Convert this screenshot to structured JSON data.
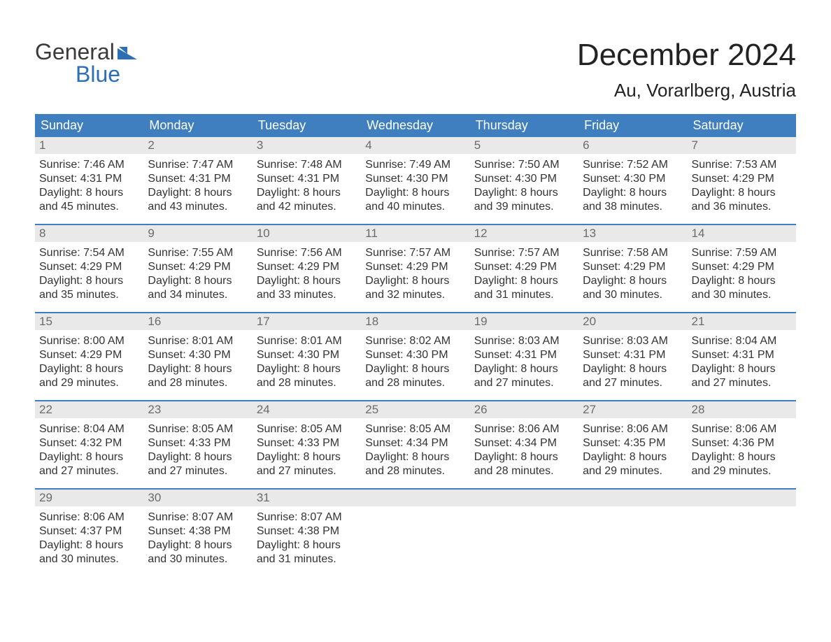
{
  "brand": {
    "line1": "General",
    "line2": "Blue",
    "flag_color": "#2d6fb4"
  },
  "header": {
    "title": "December 2024",
    "location": "Au, Vorarlberg, Austria"
  },
  "colors": {
    "header_bg": "#3f7fbf",
    "header_text": "#ffffff",
    "daynum_bg": "#e9e9e9",
    "daynum_text": "#6b6b6b",
    "body_text": "#333333",
    "week_divider": "#3f7fbf",
    "page_bg": "#ffffff"
  },
  "typography": {
    "title_fontsize": 44,
    "location_fontsize": 26,
    "weekday_fontsize": 18,
    "daynum_fontsize": 17,
    "body_fontsize": 16,
    "logo_fontsize": 32,
    "font_family": "Arial"
  },
  "layout": {
    "columns": 7,
    "rows": 5,
    "first_day_column_index": 0
  },
  "weekdays": [
    "Sunday",
    "Monday",
    "Tuesday",
    "Wednesday",
    "Thursday",
    "Friday",
    "Saturday"
  ],
  "labels": {
    "sunrise_prefix": "Sunrise: ",
    "sunset_prefix": "Sunset: ",
    "daylight_prefix": "Daylight: "
  },
  "days": [
    {
      "n": "1",
      "sunrise": "7:46 AM",
      "sunset": "4:31 PM",
      "daylight": "8 hours and 45 minutes."
    },
    {
      "n": "2",
      "sunrise": "7:47 AM",
      "sunset": "4:31 PM",
      "daylight": "8 hours and 43 minutes."
    },
    {
      "n": "3",
      "sunrise": "7:48 AM",
      "sunset": "4:31 PM",
      "daylight": "8 hours and 42 minutes."
    },
    {
      "n": "4",
      "sunrise": "7:49 AM",
      "sunset": "4:30 PM",
      "daylight": "8 hours and 40 minutes."
    },
    {
      "n": "5",
      "sunrise": "7:50 AM",
      "sunset": "4:30 PM",
      "daylight": "8 hours and 39 minutes."
    },
    {
      "n": "6",
      "sunrise": "7:52 AM",
      "sunset": "4:30 PM",
      "daylight": "8 hours and 38 minutes."
    },
    {
      "n": "7",
      "sunrise": "7:53 AM",
      "sunset": "4:29 PM",
      "daylight": "8 hours and 36 minutes."
    },
    {
      "n": "8",
      "sunrise": "7:54 AM",
      "sunset": "4:29 PM",
      "daylight": "8 hours and 35 minutes."
    },
    {
      "n": "9",
      "sunrise": "7:55 AM",
      "sunset": "4:29 PM",
      "daylight": "8 hours and 34 minutes."
    },
    {
      "n": "10",
      "sunrise": "7:56 AM",
      "sunset": "4:29 PM",
      "daylight": "8 hours and 33 minutes."
    },
    {
      "n": "11",
      "sunrise": "7:57 AM",
      "sunset": "4:29 PM",
      "daylight": "8 hours and 32 minutes."
    },
    {
      "n": "12",
      "sunrise": "7:57 AM",
      "sunset": "4:29 PM",
      "daylight": "8 hours and 31 minutes."
    },
    {
      "n": "13",
      "sunrise": "7:58 AM",
      "sunset": "4:29 PM",
      "daylight": "8 hours and 30 minutes."
    },
    {
      "n": "14",
      "sunrise": "7:59 AM",
      "sunset": "4:29 PM",
      "daylight": "8 hours and 30 minutes."
    },
    {
      "n": "15",
      "sunrise": "8:00 AM",
      "sunset": "4:29 PM",
      "daylight": "8 hours and 29 minutes."
    },
    {
      "n": "16",
      "sunrise": "8:01 AM",
      "sunset": "4:30 PM",
      "daylight": "8 hours and 28 minutes."
    },
    {
      "n": "17",
      "sunrise": "8:01 AM",
      "sunset": "4:30 PM",
      "daylight": "8 hours and 28 minutes."
    },
    {
      "n": "18",
      "sunrise": "8:02 AM",
      "sunset": "4:30 PM",
      "daylight": "8 hours and 28 minutes."
    },
    {
      "n": "19",
      "sunrise": "8:03 AM",
      "sunset": "4:31 PM",
      "daylight": "8 hours and 27 minutes."
    },
    {
      "n": "20",
      "sunrise": "8:03 AM",
      "sunset": "4:31 PM",
      "daylight": "8 hours and 27 minutes."
    },
    {
      "n": "21",
      "sunrise": "8:04 AM",
      "sunset": "4:31 PM",
      "daylight": "8 hours and 27 minutes."
    },
    {
      "n": "22",
      "sunrise": "8:04 AM",
      "sunset": "4:32 PM",
      "daylight": "8 hours and 27 minutes."
    },
    {
      "n": "23",
      "sunrise": "8:05 AM",
      "sunset": "4:33 PM",
      "daylight": "8 hours and 27 minutes."
    },
    {
      "n": "24",
      "sunrise": "8:05 AM",
      "sunset": "4:33 PM",
      "daylight": "8 hours and 27 minutes."
    },
    {
      "n": "25",
      "sunrise": "8:05 AM",
      "sunset": "4:34 PM",
      "daylight": "8 hours and 28 minutes."
    },
    {
      "n": "26",
      "sunrise": "8:06 AM",
      "sunset": "4:34 PM",
      "daylight": "8 hours and 28 minutes."
    },
    {
      "n": "27",
      "sunrise": "8:06 AM",
      "sunset": "4:35 PM",
      "daylight": "8 hours and 29 minutes."
    },
    {
      "n": "28",
      "sunrise": "8:06 AM",
      "sunset": "4:36 PM",
      "daylight": "8 hours and 29 minutes."
    },
    {
      "n": "29",
      "sunrise": "8:06 AM",
      "sunset": "4:37 PM",
      "daylight": "8 hours and 30 minutes."
    },
    {
      "n": "30",
      "sunrise": "8:07 AM",
      "sunset": "4:38 PM",
      "daylight": "8 hours and 30 minutes."
    },
    {
      "n": "31",
      "sunrise": "8:07 AM",
      "sunset": "4:38 PM",
      "daylight": "8 hours and 31 minutes."
    }
  ]
}
